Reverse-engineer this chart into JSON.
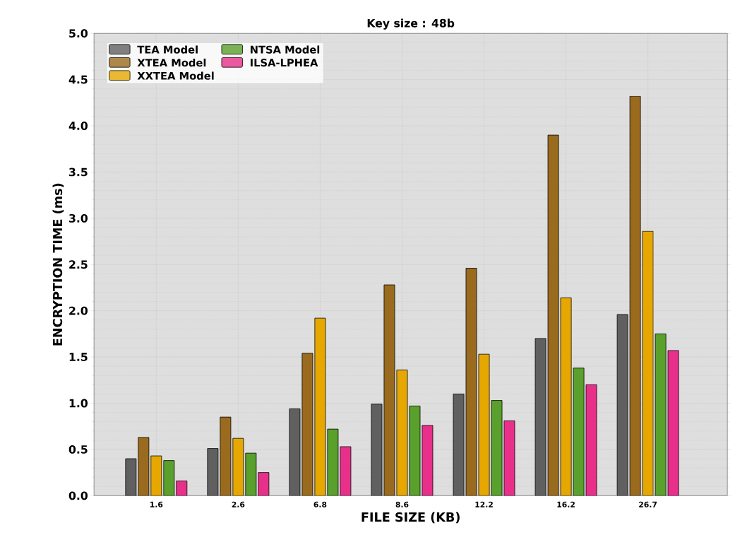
{
  "chart_data": {
    "type": "bar",
    "title": "Key size : 48b",
    "xlabel": "FILE SIZE (KB)",
    "ylabel": "ENCRYPTION TIME (ms)",
    "categories": [
      "1.6",
      "2.6",
      "6.8",
      "8.6",
      "12.2",
      "16.2",
      "26.7"
    ],
    "series": [
      {
        "name": "TEA Model",
        "color": "#606060",
        "values": [
          0.4,
          0.51,
          0.94,
          0.99,
          1.1,
          1.7,
          1.96
        ]
      },
      {
        "name": "XTEA Model",
        "color": "#9a6b1e",
        "values": [
          0.63,
          0.85,
          1.54,
          2.28,
          2.46,
          3.9,
          4.32
        ]
      },
      {
        "name": "XXTEA Model",
        "color": "#e6a800",
        "values": [
          0.43,
          0.62,
          1.92,
          1.36,
          1.53,
          2.14,
          2.86
        ]
      },
      {
        "name": "NTSA Model",
        "color": "#5aa02c",
        "values": [
          0.38,
          0.46,
          0.72,
          0.97,
          1.03,
          1.38,
          1.75
        ]
      },
      {
        "name": "ILSA-LPHEA",
        "color": "#e8308a",
        "values": [
          0.16,
          0.25,
          0.53,
          0.76,
          0.81,
          1.2,
          1.57
        ]
      }
    ],
    "ylim": [
      0,
      5
    ],
    "yticks": [
      {
        "value": 0,
        "label": "0.0"
      },
      {
        "value": 0.5,
        "label": "0.5"
      },
      {
        "value": 1,
        "label": "1.0"
      },
      {
        "value": 1.5,
        "label": "1.5"
      },
      {
        "value": 2,
        "label": "2.0"
      },
      {
        "value": 2.5,
        "label": "2.5"
      },
      {
        "value": 3,
        "label": "3.0"
      },
      {
        "value": 3.5,
        "label": "3.5"
      },
      {
        "value": 4,
        "label": "4.0"
      },
      {
        "value": 4.5,
        "label": "4.5"
      },
      {
        "value": 5,
        "label": "5.0"
      }
    ],
    "grid": true,
    "legend": "top left"
  }
}
